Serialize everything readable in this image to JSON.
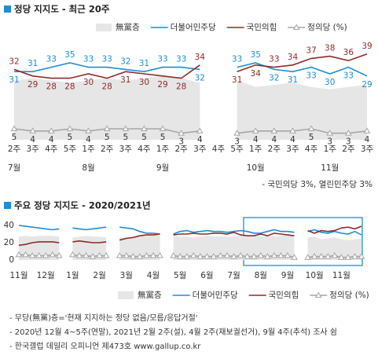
{
  "chart_data": [
    {
      "type": "line",
      "title": "정당 지지도 - 최근 20주",
      "categories": [
        "2주",
        "3주",
        "4주",
        "5주",
        "1주",
        "2주",
        "3주",
        "4주",
        "1주",
        "2주",
        "3주",
        "4주",
        "5주",
        "1주",
        "2주",
        "3주",
        "4주",
        "1주",
        "2주",
        "3주"
      ],
      "month_labels": [
        "7월",
        null,
        null,
        null,
        "8월",
        null,
        null,
        null,
        "9월",
        null,
        null,
        null,
        null,
        "10월",
        null,
        null,
        null,
        "11월",
        null,
        null
      ],
      "ylim": [
        0,
        45
      ],
      "series": [
        {
          "name": "無黨층",
          "color": "#e6e6e6",
          "kind": "area",
          "values": [
            27,
            28,
            27,
            26,
            27,
            28,
            27,
            28,
            29,
            28,
            26,
            null,
            27,
            24,
            25,
            26,
            24,
            23,
            24,
            25
          ]
        },
        {
          "name": "더불어민주당",
          "color": "#1a8fd8",
          "kind": "line",
          "labels": true,
          "values": [
            31,
            31,
            33,
            35,
            33,
            33,
            32,
            31,
            33,
            33,
            32,
            null,
            33,
            35,
            32,
            31,
            33,
            30,
            33,
            29
          ]
        },
        {
          "name": "국민의힘",
          "color": "#8e2b2b",
          "kind": "line",
          "labels": true,
          "values": [
            32,
            29,
            28,
            28,
            30,
            28,
            31,
            30,
            29,
            28,
            34,
            null,
            31,
            34,
            33,
            34,
            37,
            38,
            36,
            39
          ]
        },
        {
          "name": "정의당 (%)",
          "color": "#a6a6a6",
          "kind": "line",
          "marker": "triangle",
          "labels": true,
          "values": [
            5,
            4,
            4,
            5,
            4,
            5,
            5,
            5,
            5,
            3,
            4,
            null,
            3,
            4,
            4,
            4,
            5,
            3,
            3,
            4
          ]
        }
      ],
      "note": "- 국민의당 3%, 열린민주당 3%"
    },
    {
      "type": "line",
      "title": "주요 정당 지지도 - 2020/2021년",
      "categories": [
        "11월",
        null,
        null,
        null,
        "12월",
        null,
        null,
        null,
        "1월",
        null,
        null,
        null,
        "2월",
        null,
        null,
        null,
        "3월",
        null,
        null,
        null,
        "4월",
        null,
        null,
        null,
        "5월",
        null,
        null,
        null,
        "6월",
        null,
        null,
        null,
        "7월",
        null,
        null,
        null,
        "8월",
        null,
        null,
        null,
        "9월",
        null,
        null,
        null,
        "10월",
        null,
        null,
        null,
        "11월",
        null,
        null,
        null
      ],
      "ylim": [
        0,
        45
      ],
      "yticks": [
        0,
        20,
        40
      ],
      "series": [
        {
          "name": "無黨층",
          "color": "#e6e6e6",
          "kind": "area",
          "values": [
            27,
            28,
            27,
            28,
            28,
            28,
            27,
            null,
            26,
            27,
            28,
            27,
            27,
            26,
            null,
            26,
            26,
            27,
            27,
            28,
            29,
            28,
            null,
            28,
            27,
            27,
            26,
            27,
            28,
            27,
            27,
            27,
            27,
            28,
            28,
            28,
            27,
            28,
            27,
            28,
            29,
            28,
            null,
            26,
            27,
            24,
            25,
            26,
            24,
            23,
            24,
            25
          ]
        },
        {
          "name": "더불어민주당",
          "color": "#1a8fd8",
          "kind": "line",
          "values": [
            40,
            39,
            38,
            37,
            36,
            35,
            36,
            null,
            37,
            36,
            35,
            36,
            37,
            38,
            null,
            38,
            37,
            36,
            33,
            31,
            31,
            30,
            null,
            30,
            33,
            34,
            32,
            33,
            34,
            33,
            33,
            32,
            33,
            34,
            33,
            31,
            31,
            33,
            35,
            33,
            33,
            32,
            null,
            33,
            35,
            32,
            31,
            33,
            31,
            30,
            33,
            29
          ]
        },
        {
          "name": "국민의힘",
          "color": "#8e2b2b",
          "kind": "line",
          "values": [
            17,
            18,
            20,
            21,
            21,
            21,
            20,
            null,
            21,
            22,
            21,
            20,
            20,
            21,
            null,
            23,
            25,
            26,
            28,
            29,
            29,
            30,
            null,
            29,
            30,
            30,
            31,
            30,
            30,
            31,
            31,
            30,
            32,
            29,
            28,
            28,
            30,
            28,
            31,
            30,
            29,
            28,
            null,
            34,
            31,
            34,
            33,
            34,
            37,
            38,
            36,
            39
          ]
        },
        {
          "name": "정의당 (%)",
          "color": "#a6a6a6",
          "kind": "line",
          "marker": "triangle",
          "values": [
            6,
            6,
            5,
            5,
            5,
            6,
            5,
            null,
            6,
            5,
            5,
            4,
            5,
            5,
            null,
            5,
            5,
            4,
            4,
            5,
            5,
            5,
            null,
            5,
            4,
            4,
            5,
            4,
            4,
            4,
            5,
            5,
            4,
            5,
            4,
            4,
            5,
            4,
            5,
            5,
            5,
            3,
            null,
            3,
            4,
            4,
            4,
            5,
            3,
            3,
            4,
            4
          ]
        }
      ]
    }
  ],
  "footnotes": [
    "- 무당(無黨)층='현재 지지하는 정당 없음/모름/응답거절'",
    "- 2020년 12월 4~5주(연말), 2021년 2월 2주(설), 4월 2주(재보궐선거), 9월 4주(추석) 조사 쉼",
    "- 한국갤럽 데일리 오피니언 제473호 www.gallup.co.kr"
  ]
}
